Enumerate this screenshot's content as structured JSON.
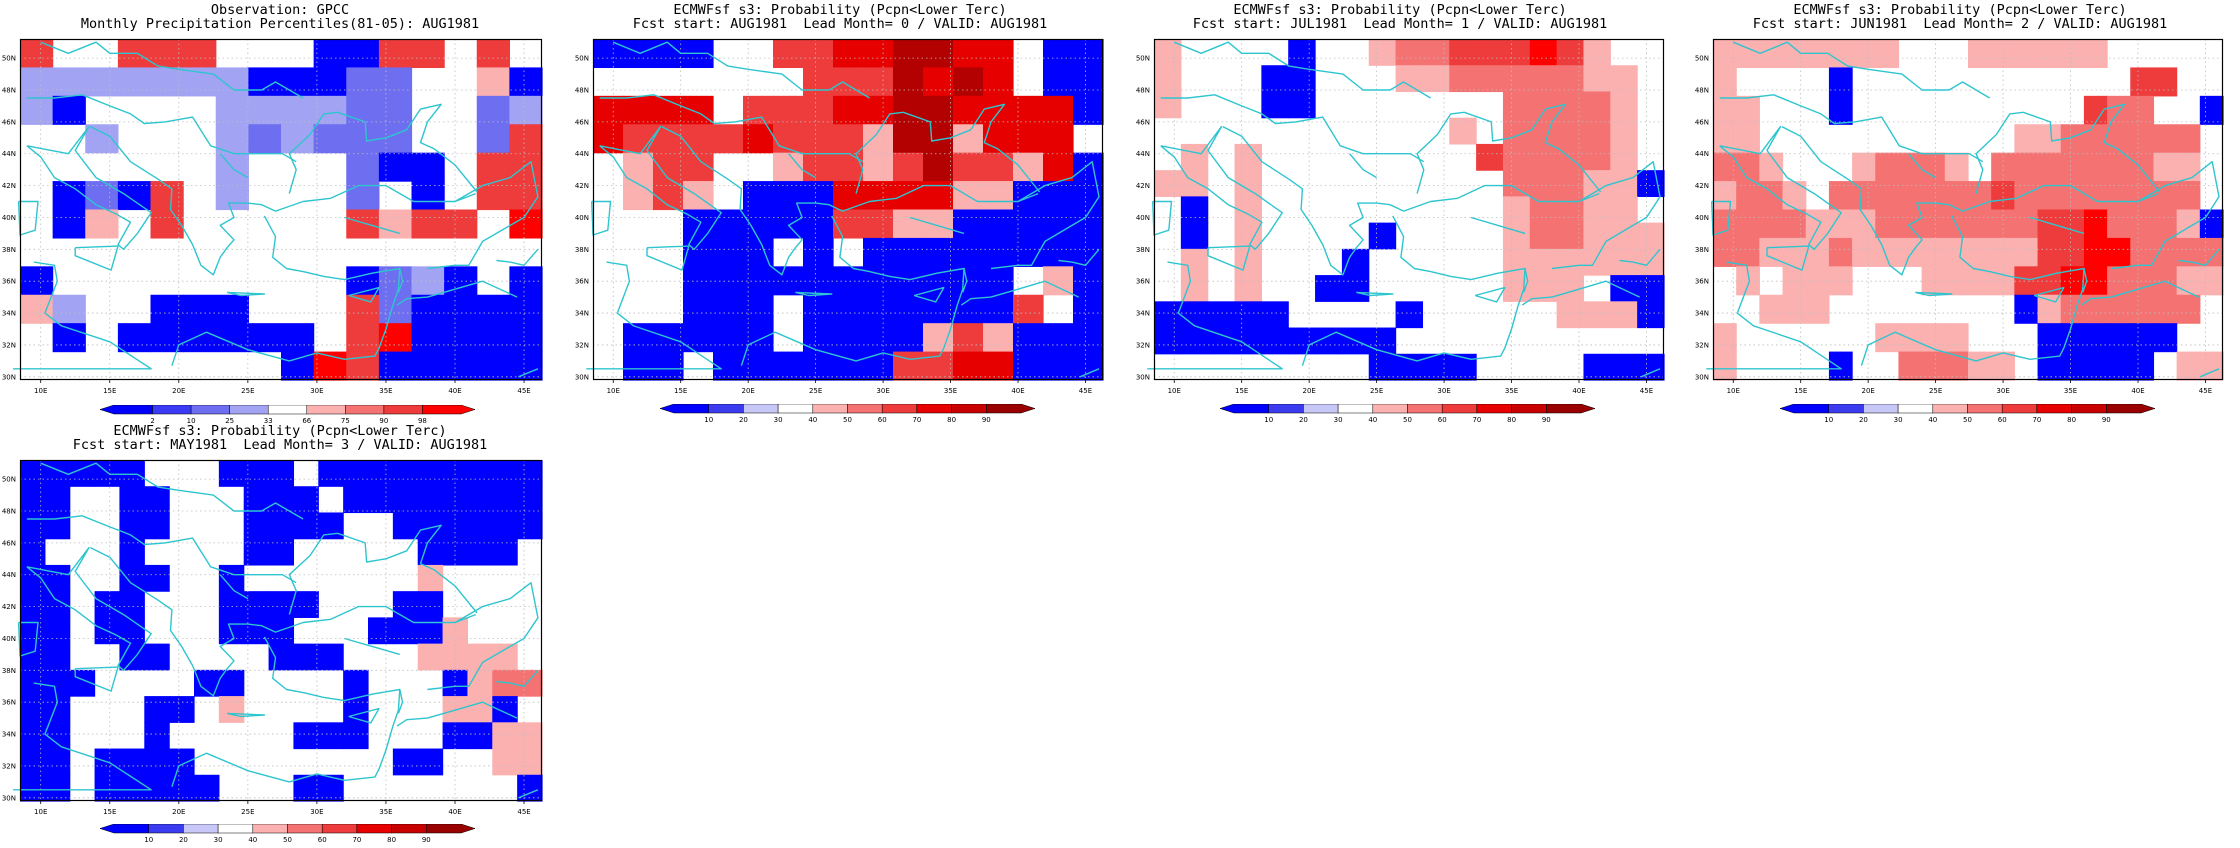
{
  "colors": {
    "grid_dotted": "#bdbdbd",
    "coast": "#2ec5cf",
    "frame": "#000000"
  },
  "axes": {
    "lon_labels": [
      "10E",
      "15E",
      "20E",
      "25E",
      "30E",
      "35E",
      "40E",
      "45E"
    ],
    "lat_labels": [
      "50N",
      "48N",
      "46N",
      "44N",
      "42N",
      "40N",
      "38N",
      "36N",
      "34N",
      "32N",
      "30N"
    ]
  },
  "panels": [
    {
      "id": "obs",
      "title_line1": "Observation: GPCC",
      "title_line2": "Monthly Precipitation Percentiles(81-05): AUG1981",
      "colorbar_labels": [
        "2",
        "10",
        "25",
        "33",
        "66",
        "75",
        "90",
        "98"
      ],
      "colorbar_colors": [
        "#0000ff",
        "#3b3bf5",
        "#6e6ef0",
        "#a3a3f3",
        "#ffffff",
        "#fcb1b1",
        "#f47272",
        "#ee3b3b",
        "#ff0000"
      ]
    },
    {
      "id": "lead0",
      "title_line1": "ECMWFsf s3: Probability (Pcpn<Lower Terc)",
      "title_line2": "Fcst start: AUG1981  Lead Month= 0 / VALID: AUG1981",
      "colorbar_labels": [
        "10",
        "20",
        "30",
        "40",
        "50",
        "60",
        "70",
        "80",
        "90"
      ],
      "colorbar_colors": [
        "#0000ff",
        "#3b3bf0",
        "#c8c8f8",
        "#ffffff",
        "#fcb1b1",
        "#f47272",
        "#ee3b3b",
        "#e60000",
        "#c80000",
        "#990000"
      ]
    },
    {
      "id": "lead1",
      "title_line1": "ECMWFsf s3: Probability (Pcpn<Lower Terc)",
      "title_line2": "Fcst start: JUL1981  Lead Month= 1 / VALID: AUG1981",
      "colorbar_labels": [
        "10",
        "20",
        "30",
        "40",
        "50",
        "60",
        "70",
        "80",
        "90"
      ],
      "colorbar_colors": [
        "#0000ff",
        "#3b3bf0",
        "#c8c8f8",
        "#ffffff",
        "#fcb1b1",
        "#f47272",
        "#ee3b3b",
        "#e60000",
        "#c80000",
        "#990000"
      ]
    },
    {
      "id": "lead2",
      "title_line1": "ECMWFsf s3: Probability (Pcpn<Lower Terc)",
      "title_line2": "Fcst start: JUN1981  Lead Month= 2 / VALID: AUG1981",
      "colorbar_labels": [
        "10",
        "20",
        "30",
        "40",
        "50",
        "60",
        "70",
        "80",
        "90"
      ],
      "colorbar_colors": [
        "#0000ff",
        "#3b3bf0",
        "#c8c8f8",
        "#ffffff",
        "#fcb1b1",
        "#f47272",
        "#ee3b3b",
        "#e60000",
        "#c80000",
        "#990000"
      ]
    },
    {
      "id": "lead3",
      "title_line1": "ECMWFsf s3: Probability (Pcpn<Lower Terc)",
      "title_line2": "Fcst start: MAY1981  Lead Month= 3 / VALID: AUG1981",
      "colorbar_labels": [
        "10",
        "20",
        "30",
        "40",
        "50",
        "60",
        "70",
        "80",
        "90"
      ],
      "colorbar_colors": [
        "#0000ff",
        "#3b3bf0",
        "#c8c8f8",
        "#ffffff",
        "#fcb1b1",
        "#f47272",
        "#ee3b3b",
        "#e60000",
        "#c80000",
        "#990000"
      ]
    }
  ],
  "grids": {
    "obs": [
      "R..RRR...BBRR.R.",
      "LLLLLLLBBBMM..PB",
      "LB....LLLLMM..ML",
      "..L...LMLMMM..MR",
      "......L...MBB.RR",
      ".BMBR.L...M.B.RR",
      ".BP.R.....RPRR.S",
      "................",
      "B.........BMLB.B",
      "PL..BBB...RMBBBB",
      ".B.BBBBBB.RSBBBB",
      "........BSRBBBBB"
    ],
    "lead0": [
      "BBBB..MMRRSSRR.BB",
      ".......MMMSRSR.BB",
      "RRRR.MMMRRSSRRRRB",
      "RMMMMRMMMPSSPRRR.",
      ".PMM..PMMPMSMMPRB",
      ".PMP.BBBRRRRPPBBB",
      "...BBBBBMMPPBBBBB",
      "...BBB.B.BBBBBBBB",
      "...BBBBBBBBBBB.PB",
      "...BBB.BBBBBBBM.B",
      ".BBBBB.BBBBPMPBBB",
      ".BB.BBBBBBMMRRBBB"
    ],
    "lead1": [
      "P....B..PMMRRRSRP..",
      "P...BB...PPMMMMMPP.",
      "P...BB.......MMMMP.",
      "...........P.MMMMP.",
      ".P.P........RMMMMP.",
      "PP.P.........MMMPPB",
      ".B.P.........PMMPP.",
      ".B.P....B....PMMPPP",
      ".P.P...B.....PPPPPP",
      ".P.P..BB.....PPP.BB",
      "BBBBB....B.....PPPB",
      "BBBBBBBBB..........",
      "........BBBB....BBB"
    ],
    "lead2": [
      "PPPPPPPP...PPPPPP.....",
      "P....B............RR..",
      "PP...B..........RMM..B",
      "PP...........PPMMMMMM.",
      "MMP...PMMMP.MMMMMMMPP.",
      "PMMP.MMMMMMMRMMMMMMMM.",
      "MMMMPPPMMMMMMMRRSMMMPB",
      "MMPPPMPPPPPPPPRRSSMMMM",
      ".P.PPP...PPPPRRSSMMMPP",
      "..PPP........BPMMMMMM.",
      "P......PPPP...BBBBBB..",
      "P....B..MMMPP.BBBBB.PP"
    ],
    "lead3": [
      "BBBBB...BBB.BBBBBBBBB",
      "BB..BB...BBB.BBBBBBBB",
      "BB..BB...BBBB..BBBBBB",
      "B...B....BB.....BBBB.",
      "BB..BB..B.......P....",
      "BB.BB...BBBB...BB....",
      "BB.BB...BBB...BBBP...",
      "BB..BB....BBB...PPPP.",
      "BBB....BB....B...BPMM",
      "BB...BB.P....B...PPB.",
      "BB...B.....BBB...BBPP",
      "BB.BBBB........BB..PP",
      "BB.BBBBB...BB.......B"
    ]
  }
}
